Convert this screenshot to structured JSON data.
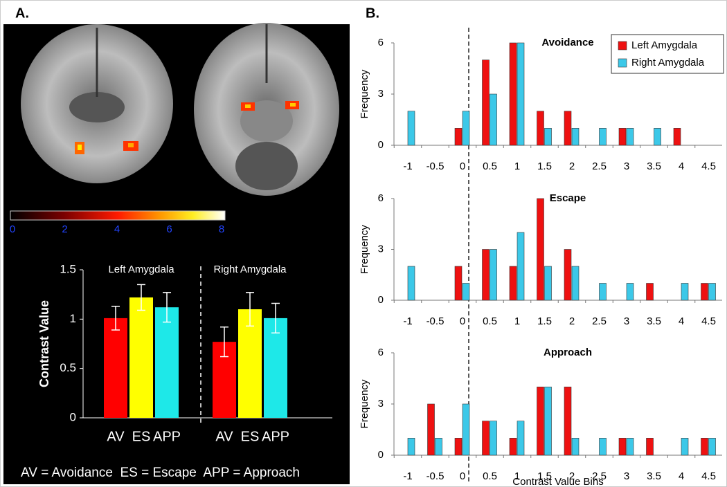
{
  "panels": {
    "a": "A.",
    "b": "B."
  },
  "colorbar": {
    "lim": [
      0,
      8
    ],
    "ticks": [
      0,
      2,
      4,
      6,
      8
    ]
  },
  "footnote": "AV = Avoidance  ES = Escape  APP = Approach",
  "chart_data": [
    {
      "type": "bar",
      "y_label": "Contrast Value",
      "categories": [
        "AV",
        "ES",
        "APP"
      ],
      "colors": [
        "#ff0000",
        "#ffff00",
        "#1ee8e8"
      ],
      "groups": [
        {
          "name": "Left Amygdala",
          "values": [
            1.01,
            1.22,
            1.12
          ],
          "errors": [
            0.12,
            0.13,
            0.15
          ]
        },
        {
          "name": "Right Amygdala",
          "values": [
            0.77,
            1.1,
            1.01
          ],
          "errors": [
            0.15,
            0.17,
            0.15
          ]
        }
      ],
      "ylim": [
        0,
        1.5
      ],
      "yticks": [
        0,
        0.5,
        1,
        1.5
      ]
    },
    {
      "type": "grouped_bar",
      "title": "Avoidance",
      "y_label": "Frequency",
      "legend": "top-right",
      "categories": [
        "-1",
        "-0.5",
        "0",
        "0.5",
        "1",
        "1.5",
        "2",
        "2.5",
        "3",
        "3.5",
        "4",
        "4.5"
      ],
      "series": [
        {
          "name": "Left Amygdala",
          "color": "#ee1111",
          "values": [
            0,
            0,
            1,
            5,
            6,
            2,
            2,
            0,
            1,
            0,
            1,
            0
          ]
        },
        {
          "name": "Right Amygdala",
          "color": "#3cc8e8",
          "values": [
            2,
            0,
            2,
            3,
            6,
            1,
            1,
            1,
            1,
            1,
            0,
            0
          ]
        }
      ],
      "ylim": [
        0,
        6
      ],
      "yticks": [
        0,
        3,
        6
      ]
    },
    {
      "type": "grouped_bar",
      "title": "Escape",
      "y_label": "Frequency",
      "categories": [
        "-1",
        "-0.5",
        "0",
        "0.5",
        "1",
        "1.5",
        "2",
        "2.5",
        "3",
        "3.5",
        "4",
        "4.5"
      ],
      "series": [
        {
          "color": "#ee1111",
          "values": [
            0,
            0,
            2,
            3,
            2,
            6,
            3,
            0,
            0,
            1,
            0,
            1
          ]
        },
        {
          "color": "#3cc8e8",
          "values": [
            2,
            0,
            1,
            3,
            4,
            2,
            2,
            1,
            1,
            0,
            1,
            1
          ]
        }
      ],
      "ylim": [
        0,
        6
      ],
      "yticks": [
        0,
        3,
        6
      ]
    },
    {
      "type": "grouped_bar",
      "title": "Approach",
      "y_label": "Frequency",
      "x_label": "Contrast Value Bins",
      "categories": [
        "-1",
        "-0.5",
        "0",
        "0.5",
        "1",
        "1.5",
        "2",
        "2.5",
        "3",
        "3.5",
        "4",
        "4.5"
      ],
      "series": [
        {
          "color": "#ee1111",
          "values": [
            0,
            3,
            1,
            2,
            1,
            4,
            4,
            0,
            1,
            1,
            0,
            1
          ]
        },
        {
          "color": "#3cc8e8",
          "values": [
            1,
            1,
            3,
            2,
            2,
            4,
            1,
            1,
            1,
            0,
            1,
            1
          ]
        }
      ],
      "ylim": [
        0,
        6
      ],
      "yticks": [
        0,
        3,
        6
      ]
    }
  ]
}
